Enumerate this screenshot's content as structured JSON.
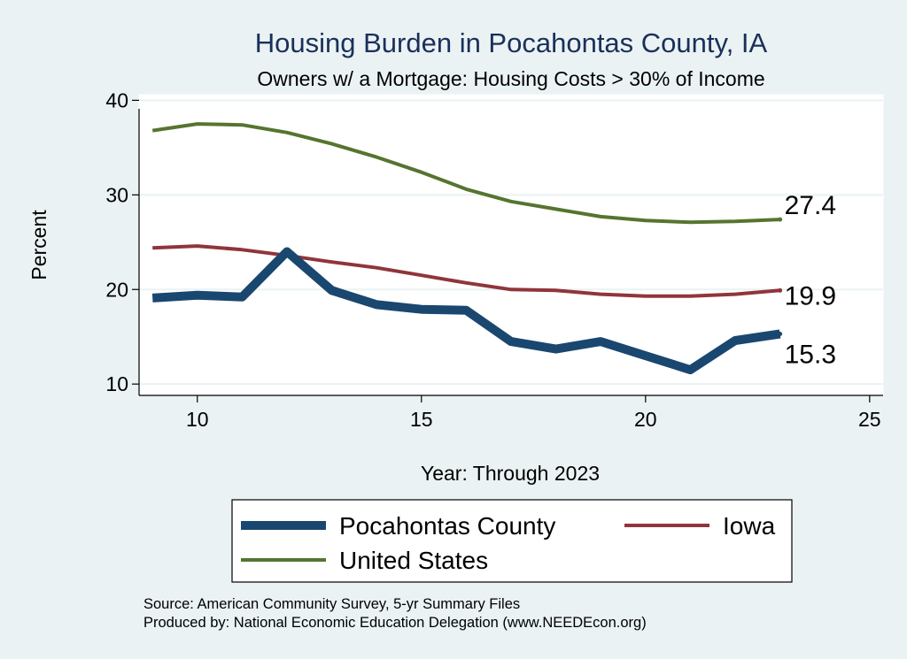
{
  "chart_data": {
    "type": "line",
    "title": "Housing Burden in Pocahontas County, IA",
    "subtitle": "Owners w/ a Mortgage: Housing Costs > 30% of Income",
    "xlabel": "Year: Through 2023",
    "ylabel": "Percent",
    "xlim": [
      8.7,
      25.3
    ],
    "ylim": [
      8.8,
      40.6
    ],
    "xticks": [
      10,
      15,
      20,
      25
    ],
    "yticks": [
      10,
      20,
      30,
      40
    ],
    "grid": true,
    "legend_position": "bottom",
    "x": [
      9,
      10,
      11,
      12,
      13,
      14,
      15,
      16,
      17,
      18,
      19,
      20,
      21,
      22,
      23
    ],
    "series": [
      {
        "name": "Pocahontas County",
        "color": "#1a476f",
        "values": [
          19.1,
          19.4,
          19.2,
          24.0,
          19.9,
          18.4,
          17.9,
          17.8,
          14.5,
          13.7,
          14.5,
          13.0,
          11.5,
          14.6,
          15.3
        ],
        "end_label": "15.3"
      },
      {
        "name": "Iowa",
        "color": "#90353b",
        "values": [
          24.4,
          24.6,
          24.2,
          23.6,
          22.9,
          22.3,
          21.5,
          20.7,
          20.0,
          19.9,
          19.5,
          19.3,
          19.3,
          19.5,
          19.9
        ],
        "end_label": "19.9"
      },
      {
        "name": "United States",
        "color": "#55752f",
        "values": [
          36.8,
          37.5,
          37.4,
          36.6,
          35.4,
          34.0,
          32.4,
          30.6,
          29.3,
          28.5,
          27.7,
          27.3,
          27.1,
          27.2,
          27.4
        ],
        "end_label": "27.4"
      }
    ]
  },
  "notes": {
    "source": "Source: American Community Survey, 5-yr Summary Files",
    "producer": "Produced by: National Economic Education Delegation (www.NEEDEcon.org)"
  }
}
